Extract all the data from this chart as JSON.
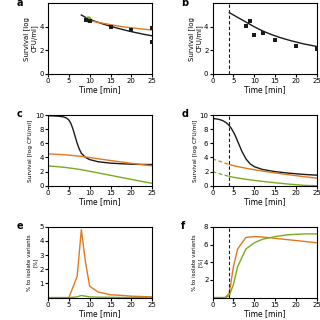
{
  "panel_a": {
    "scatter_x": [
      9,
      10,
      15,
      20,
      25,
      25
    ],
    "scatter_y": [
      4.6,
      4.5,
      4.0,
      3.7,
      3.9,
      2.7
    ],
    "fit_x": [
      8,
      9,
      10,
      11,
      12,
      13,
      14,
      15,
      16,
      17,
      18,
      19,
      20,
      21,
      22,
      23,
      24,
      25
    ],
    "fit_y": [
      5.0,
      4.8,
      4.65,
      4.5,
      4.38,
      4.26,
      4.15,
      4.05,
      3.95,
      3.85,
      3.76,
      3.67,
      3.59,
      3.51,
      3.44,
      3.36,
      3.3,
      3.23
    ],
    "orange_x": [
      9,
      10,
      12,
      15,
      18,
      20,
      22,
      25
    ],
    "orange_y": [
      4.6,
      4.52,
      4.38,
      4.18,
      4.0,
      3.92,
      3.83,
      3.73
    ],
    "green_dot_x": [
      9.5
    ],
    "green_dot_y": [
      4.65
    ],
    "ylim": [
      0,
      6
    ],
    "yticks": [
      0,
      2,
      4
    ],
    "ylabel": "Survival [log\nCFU/ml]",
    "xlabel": "Time [min]",
    "xlim": [
      0,
      25
    ],
    "xticks": [
      0,
      5,
      10,
      15,
      20,
      25
    ]
  },
  "panel_b": {
    "scatter_x": [
      8,
      9,
      10,
      12,
      15,
      20,
      25
    ],
    "scatter_y": [
      4.1,
      4.5,
      3.3,
      3.5,
      2.9,
      2.4,
      2.1
    ],
    "fit_x": [
      4,
      5,
      6,
      7,
      8,
      9,
      10,
      11,
      12,
      13,
      14,
      15,
      16,
      17,
      18,
      19,
      20,
      21,
      22,
      23,
      24,
      25
    ],
    "fit_y": [
      5.2,
      5.0,
      4.8,
      4.6,
      4.4,
      4.2,
      4.0,
      3.82,
      3.65,
      3.5,
      3.36,
      3.23,
      3.11,
      3.0,
      2.9,
      2.8,
      2.71,
      2.62,
      2.54,
      2.47,
      2.4,
      2.33
    ],
    "dashed_vline_x": 4,
    "ylim": [
      0,
      6
    ],
    "yticks": [
      0,
      2,
      4
    ],
    "ylabel": "Survival [log\nCFU/ml]",
    "xlabel": "Time [min]",
    "xlim": [
      0,
      25
    ],
    "xticks": [
      0,
      5,
      10,
      15,
      20,
      25
    ]
  },
  "panel_c": {
    "black_x": [
      0,
      0.5,
      1,
      1.5,
      2,
      2.5,
      3,
      3.5,
      4,
      4.5,
      5,
      5.5,
      6,
      6.5,
      7,
      7.5,
      8,
      9,
      10,
      12,
      15,
      18,
      20,
      22,
      25
    ],
    "black_y": [
      9.9,
      9.9,
      9.88,
      9.87,
      9.85,
      9.83,
      9.8,
      9.75,
      9.68,
      9.55,
      9.3,
      8.8,
      8.0,
      7.0,
      6.0,
      5.2,
      4.6,
      4.0,
      3.7,
      3.4,
      3.2,
      3.1,
      3.05,
      3.02,
      3.0
    ],
    "orange_x": [
      0,
      2,
      4,
      6,
      8,
      10,
      12,
      15,
      18,
      20,
      22,
      25
    ],
    "orange_y": [
      4.5,
      4.45,
      4.38,
      4.28,
      4.15,
      4.0,
      3.82,
      3.57,
      3.33,
      3.18,
      3.03,
      2.82
    ],
    "green_x": [
      0,
      2,
      4,
      6,
      8,
      10,
      12,
      15,
      18,
      20,
      22,
      25
    ],
    "green_y": [
      2.8,
      2.72,
      2.6,
      2.45,
      2.27,
      2.05,
      1.82,
      1.48,
      1.13,
      0.9,
      0.67,
      0.35
    ],
    "ylim": [
      0,
      10
    ],
    "yticks": [
      0,
      2,
      4,
      6,
      8,
      10
    ],
    "ylabel": "Survival [log CFU/ml]",
    "xlabel": "Time [min]",
    "xlim": [
      0,
      25
    ],
    "xticks": [
      0,
      5,
      10,
      15,
      20,
      25
    ]
  },
  "panel_d": {
    "black_x": [
      0,
      0.5,
      1,
      1.5,
      2,
      2.5,
      3,
      3.5,
      4,
      4.5,
      5,
      5.5,
      6,
      6.5,
      7,
      8,
      9,
      10,
      12,
      15,
      18,
      20,
      22,
      25
    ],
    "black_y": [
      9.5,
      9.48,
      9.44,
      9.38,
      9.3,
      9.18,
      9.02,
      8.8,
      8.5,
      8.1,
      7.6,
      7.0,
      6.3,
      5.6,
      4.9,
      3.8,
      3.1,
      2.7,
      2.3,
      2.0,
      1.8,
      1.7,
      1.6,
      1.5
    ],
    "orange_dashed_x": [
      0,
      1,
      2,
      3,
      4
    ],
    "orange_dashed_y": [
      3.8,
      3.6,
      3.4,
      3.2,
      3.0
    ],
    "orange_solid_x": [
      4,
      5,
      6,
      8,
      10,
      12,
      15,
      18,
      20,
      22,
      25
    ],
    "orange_solid_y": [
      3.0,
      2.85,
      2.72,
      2.48,
      2.27,
      2.08,
      1.82,
      1.58,
      1.43,
      1.28,
      1.08
    ],
    "green_dashed_x": [
      0,
      1,
      2,
      3,
      4
    ],
    "green_dashed_y": [
      2.0,
      1.82,
      1.65,
      1.48,
      1.32
    ],
    "green_solid_x": [
      4,
      5,
      6,
      8,
      10,
      12,
      15,
      18,
      20,
      22,
      25
    ],
    "green_solid_y": [
      1.32,
      1.2,
      1.1,
      0.92,
      0.76,
      0.62,
      0.43,
      0.25,
      0.15,
      0.06,
      0.0
    ],
    "dashed_vline_x": 4,
    "ylim": [
      0,
      10
    ],
    "yticks": [
      0,
      2,
      4,
      6,
      8,
      10
    ],
    "ylabel": "Survival [log CFU/ml]",
    "xlabel": "Time [min]",
    "xlim": [
      0,
      25
    ],
    "xticks": [
      0,
      5,
      10,
      15,
      20,
      25
    ]
  },
  "panel_e": {
    "orange_x": [
      0,
      5,
      7,
      8,
      9,
      10,
      12,
      15,
      18,
      20,
      22,
      25
    ],
    "orange_y": [
      0,
      0,
      1.5,
      4.8,
      2.5,
      0.8,
      0.4,
      0.2,
      0.15,
      0.1,
      0.08,
      0.05
    ],
    "green_x": [
      0,
      5,
      7,
      8,
      9,
      10,
      12,
      15,
      18,
      20,
      22,
      25
    ],
    "green_y": [
      0,
      0,
      0.05,
      0.15,
      0.1,
      0.05,
      0.03,
      0.02,
      0.01,
      0.01,
      0.005,
      0.003
    ],
    "ylim": [
      0,
      5
    ],
    "yticks": [
      1,
      2,
      3,
      4,
      5
    ],
    "ylabel": "% to isolate variants\n[%]",
    "xlabel": "Time [min]",
    "xlim": [
      0,
      25
    ],
    "xticks": [
      0,
      5,
      10,
      15,
      20,
      25
    ]
  },
  "panel_f": {
    "orange_x": [
      0,
      3,
      4,
      5,
      6,
      8,
      10,
      12,
      15,
      18,
      20,
      22,
      25
    ],
    "orange_y": [
      0,
      0,
      0.5,
      3.5,
      5.5,
      6.8,
      6.9,
      6.85,
      6.7,
      6.55,
      6.45,
      6.35,
      6.2
    ],
    "green_x": [
      0,
      3,
      4,
      5,
      6,
      8,
      10,
      12,
      15,
      18,
      20,
      22,
      25
    ],
    "green_y": [
      0,
      0,
      0.2,
      1.5,
      3.5,
      5.5,
      6.2,
      6.6,
      6.9,
      7.1,
      7.15,
      7.2,
      7.2
    ],
    "dashed_vline_x": 4,
    "ylim": [
      0,
      8
    ],
    "yticks": [
      2,
      4,
      6,
      8
    ],
    "ylabel": "% to isolate variants\n[%]",
    "xlabel": "Time [min]",
    "xlim": [
      0,
      25
    ],
    "xticks": [
      0,
      5,
      10,
      15,
      20,
      25
    ]
  },
  "colors": {
    "black": "#1a1a1a",
    "orange": "#e07820",
    "green": "#7aaa20"
  }
}
